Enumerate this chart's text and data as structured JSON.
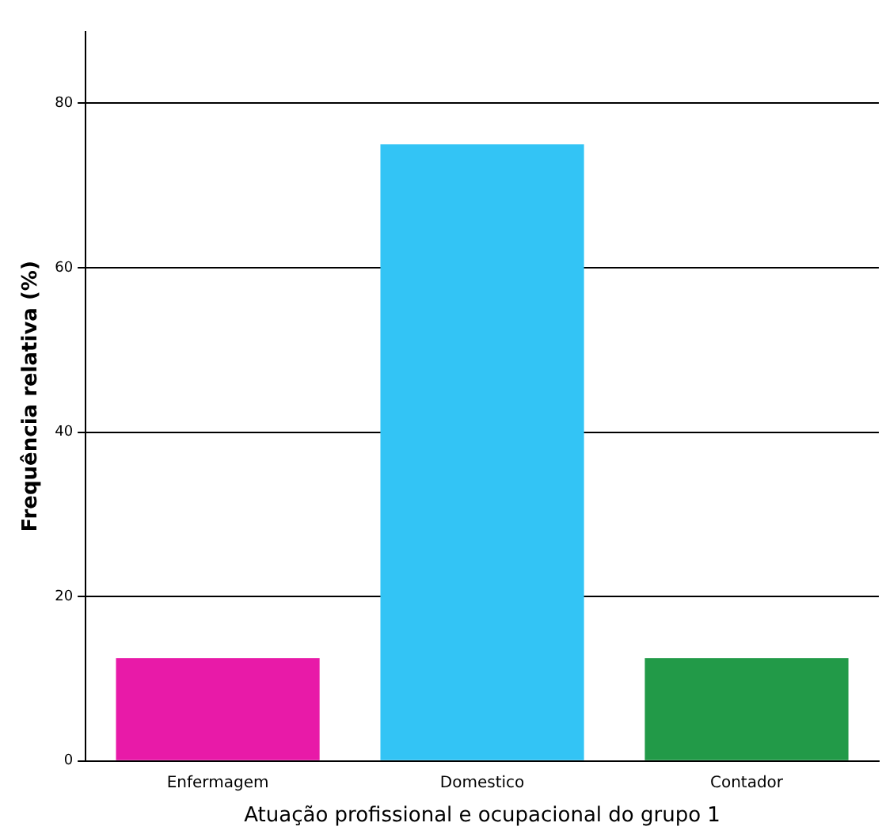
{
  "chart_data": {
    "type": "bar",
    "xlabel": "Atuação profissional e ocupacional do grupo 1",
    "ylabel": "Frequência relativa (%)",
    "categories": [
      "Enfermagem",
      "Domestico",
      "Contador"
    ],
    "values": [
      12.5,
      75,
      12.5
    ],
    "colors": [
      "#e81aa8",
      "#33c4f5",
      "#229a48"
    ],
    "ylim": [
      0,
      88.7
    ],
    "yticks": [
      0,
      20,
      40,
      60,
      80
    ],
    "grid": "y",
    "legend": false
  }
}
